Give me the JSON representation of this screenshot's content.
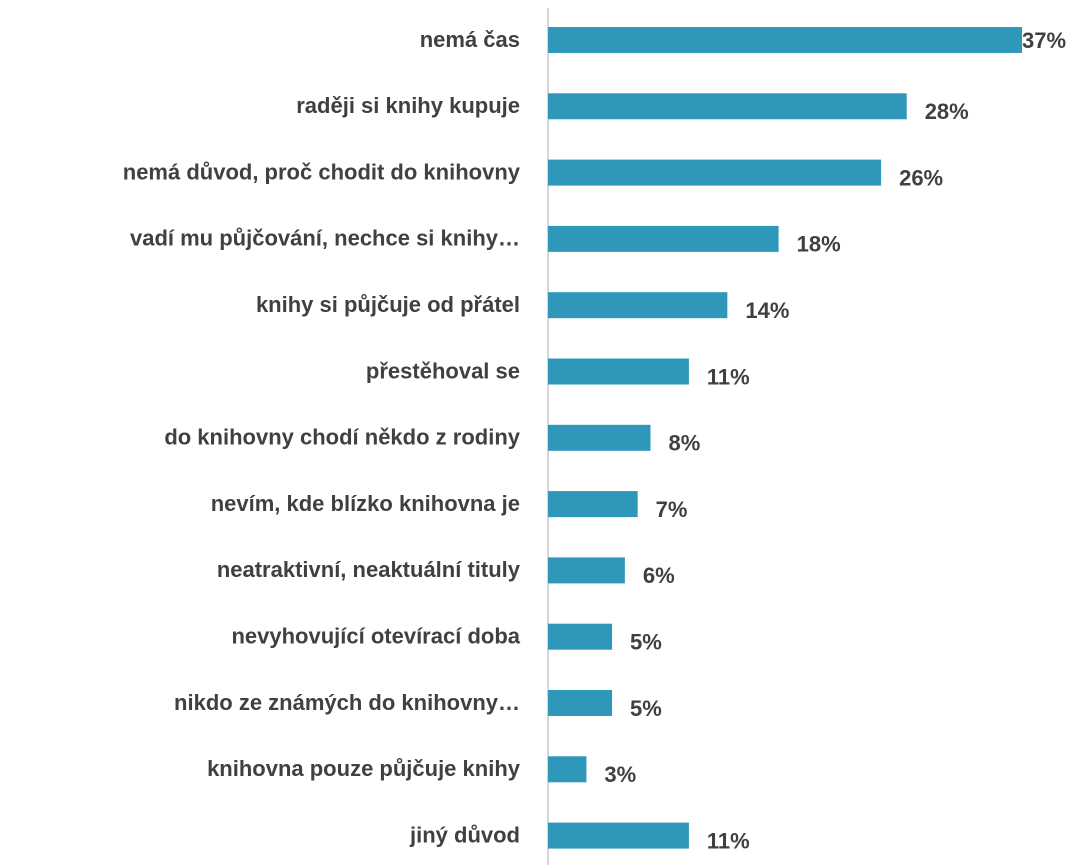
{
  "chart_data": {
    "type": "bar",
    "orientation": "horizontal",
    "categories": [
      "nemá čas",
      "raději si knihy kupuje",
      "nemá důvod, proč chodit do knihovny",
      "vadí mu půjčování, nechce si knihy…",
      "knihy si půjčuje od přátel",
      "přestěhoval se",
      "do knihovny chodí někdo z rodiny",
      "nevím, kde blízko knihovna je",
      "neatraktivní, neaktuální tituly",
      "nevyhovující otevírací doba",
      "nikdo ze známých do knihovny…",
      "knihovna pouze půjčuje knihy",
      "jiný důvod"
    ],
    "values": [
      37,
      28,
      26,
      18,
      14,
      11,
      8,
      7,
      6,
      5,
      5,
      3,
      11
    ],
    "value_labels": [
      "37%",
      "28%",
      "26%",
      "18%",
      "14%",
      "11%",
      "8%",
      "7%",
      "6%",
      "5%",
      "5%",
      "3%",
      "11%"
    ],
    "color": "#2f98ba",
    "xlim": [
      0,
      37
    ]
  }
}
